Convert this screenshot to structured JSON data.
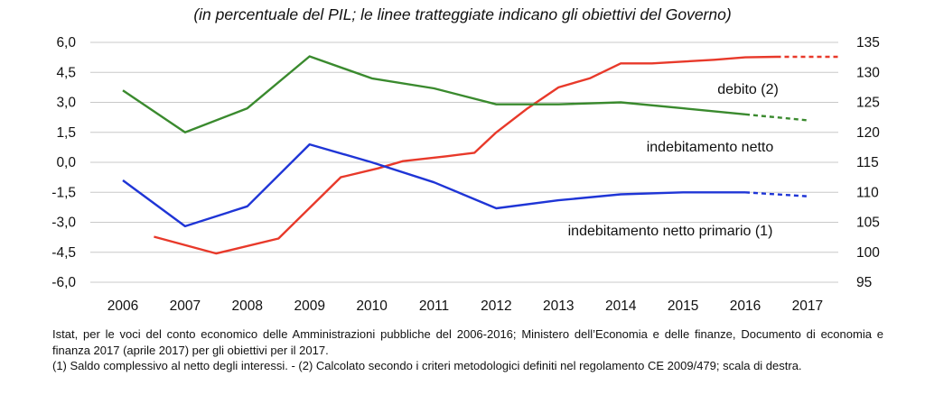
{
  "subtitle": "(in percentuale del PIL; le linee tratteggiate indicano gli obiettivi del Governo)",
  "chart_data": {
    "type": "line",
    "categories": [
      "2006",
      "2007",
      "2008",
      "2009",
      "2010",
      "2011",
      "2012",
      "2013",
      "2014",
      "2015",
      "2016",
      "2017"
    ],
    "y_left": {
      "min": -6.0,
      "max": 6.0,
      "ticks": [
        "6,0",
        "4,5",
        "3,0",
        "1,5",
        "0,0",
        "-1,5",
        "-3,0",
        "-4,5",
        "-6,0"
      ]
    },
    "y_right": {
      "min": 95,
      "max": 135,
      "ticks": [
        "135",
        "130",
        "125",
        "120",
        "115",
        "110",
        "105",
        "100",
        "95"
      ]
    },
    "grid": "horizontal",
    "series": [
      {
        "name": "debito (2)",
        "axis": "right",
        "color": "#e8392a",
        "x": [
          2006.5,
          2007.5,
          2008.5,
          2009.5,
          2010.1,
          2010.5,
          2011.2,
          2011.65,
          2012.0,
          2012.5,
          2013.0,
          2013.5,
          2014.0,
          2014.5,
          2015.0,
          2015.5,
          2016.0,
          2016.5,
          2017.0,
          2017.5
        ],
        "values": [
          102.6,
          99.8,
          102.3,
          112.5,
          114.0,
          115.2,
          116.0,
          116.6,
          120.0,
          124.0,
          127.5,
          129.0,
          131.5,
          131.5,
          131.8,
          132.1,
          132.5,
          132.6,
          132.6,
          132.6
        ],
        "projected_from": 2016.5
      },
      {
        "name": "indebitamento netto",
        "axis": "left",
        "color": "#3a8a2e",
        "x": [
          2006,
          2007,
          2008,
          2009,
          2010,
          2011,
          2012,
          2013,
          2014,
          2015,
          2016,
          2017
        ],
        "values": [
          3.6,
          1.5,
          2.7,
          5.3,
          4.2,
          3.7,
          2.9,
          2.9,
          3.0,
          2.7,
          2.4,
          2.1
        ],
        "projected_from": 2016
      },
      {
        "name": "indebitamento netto primario (1)",
        "axis": "left",
        "color": "#1f35d6",
        "x": [
          2006,
          2007,
          2008,
          2009,
          2010,
          2011,
          2012,
          2013,
          2014,
          2015,
          2016,
          2017
        ],
        "values": [
          -0.9,
          -3.2,
          -2.2,
          0.9,
          0.0,
          -1.0,
          -2.3,
          -1.9,
          -1.6,
          -1.5,
          -1.5,
          -1.7
        ],
        "projected_from": 2016
      }
    ],
    "labels": [
      "debito (2)",
      "indebitamento netto",
      "indebitamento netto primario (1)"
    ]
  },
  "notes": [
    "Istat, per le voci del conto economico delle Amministrazioni pubbliche del 2006-2016; Ministero dell’Economia e delle finanze, Documento di economia e finanza 2017 (aprile 2017) per gli obiettivi per il 2017.",
    "(1) Saldo complessivo al netto degli interessi. - (2) Calcolato secondo i criteri metodologici definiti nel regolamento CE 2009/479; scala di destra."
  ]
}
